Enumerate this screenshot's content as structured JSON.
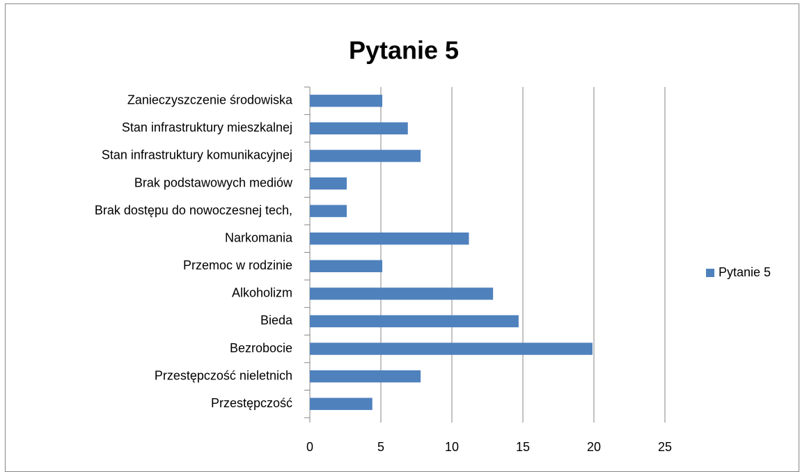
{
  "chart_data": {
    "type": "bar",
    "orientation": "horizontal",
    "title": "Pytanie 5",
    "categories": [
      "Zanieczyszczenie środowiska",
      "Stan infrastruktury mieszkalnej",
      "Stan infrastruktury komunikacyjnej",
      "Brak podstawowych mediów",
      "Brak dostępu do nowoczesnej tech,",
      "Narkomania",
      "Przemoc w rodzinie",
      "Alkoholizm",
      "Bieda",
      "Bezrobocie",
      "Przestępczość nieletnich",
      "Przestępczość"
    ],
    "series": [
      {
        "name": "Pytanie 5",
        "color": "#4f81bd",
        "values": [
          5.1,
          6.9,
          7.8,
          2.6,
          2.6,
          11.2,
          5.1,
          12.9,
          14.7,
          19.9,
          7.8,
          4.4
        ]
      }
    ],
    "xlim": [
      0,
      25
    ],
    "xticks": [
      0,
      5,
      10,
      15,
      20,
      25
    ],
    "grid": true,
    "legend": "right"
  }
}
